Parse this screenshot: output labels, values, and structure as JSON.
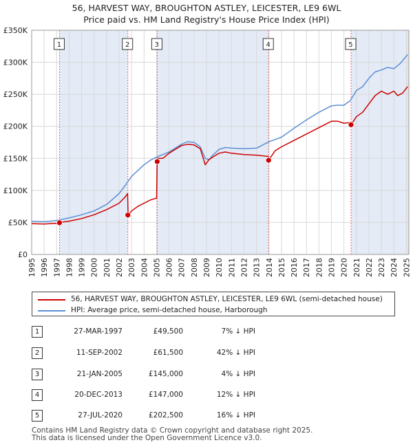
{
  "title_line1": "56, HARVEST WAY, BROUGHTON ASTLEY, LEICESTER, LE9 6WL",
  "title_line2": "Price paid vs. HM Land Registry's House Price Index (HPI)",
  "chart_data": {
    "type": "line",
    "xlim": [
      1995.0,
      2025.2
    ],
    "ylim": [
      0,
      350000
    ],
    "y_ticks": [
      0,
      50000,
      100000,
      150000,
      200000,
      250000,
      300000,
      350000
    ],
    "y_tick_labels": [
      "£0",
      "£50K",
      "£100K",
      "£150K",
      "£200K",
      "£250K",
      "£300K",
      "£350K"
    ],
    "x_ticks": [
      1995,
      1996,
      1997,
      1998,
      1999,
      2000,
      2001,
      2002,
      2003,
      2004,
      2005,
      2006,
      2007,
      2008,
      2009,
      2010,
      2011,
      2012,
      2013,
      2014,
      2015,
      2016,
      2017,
      2018,
      2019,
      2020,
      2021,
      2022,
      2023,
      2024,
      2025
    ],
    "grid": true,
    "series": [
      {
        "name": "56, HARVEST WAY, BROUGHTON ASTLEY, LEICESTER, LE9 6WL (semi-detached house)",
        "color": "#cc0000",
        "x": [
          1995.0,
          1996.0,
          1997.0,
          1997.23,
          1997.25,
          1998.0,
          1999.0,
          2000.0,
          2001.0,
          2002.0,
          2002.5,
          2002.68,
          2002.72,
          2003.0,
          2003.5,
          2004.0,
          2004.5,
          2005.0,
          2005.05,
          2005.1,
          2005.5,
          2006.0,
          2007.0,
          2007.5,
          2008.0,
          2008.5,
          2008.9,
          2009.2,
          2009.5,
          2010.0,
          2010.5,
          2011.0,
          2012.0,
          2013.0,
          2013.95,
          2013.97,
          2014.5,
          2015.0,
          2016.0,
          2017.0,
          2018.0,
          2019.0,
          2019.5,
          2020.0,
          2020.55,
          2020.57,
          2021.0,
          2021.5,
          2022.0,
          2022.5,
          2023.0,
          2023.5,
          2024.0,
          2024.3,
          2024.7,
          2025.1
        ],
        "y": [
          48000,
          47500,
          48500,
          49500,
          50000,
          52000,
          56000,
          62000,
          70000,
          80000,
          90000,
          95000,
          61500,
          68000,
          75000,
          80000,
          85000,
          88000,
          145000,
          150000,
          150000,
          158000,
          170000,
          172000,
          171000,
          165000,
          140000,
          148000,
          152000,
          158000,
          160000,
          158000,
          156000,
          155000,
          153000,
          147000,
          162000,
          168000,
          178000,
          188000,
          198000,
          208000,
          208000,
          205000,
          206000,
          202500,
          215000,
          222000,
          235000,
          248000,
          255000,
          250000,
          255000,
          248000,
          252000,
          262000
        ]
      },
      {
        "name": "HPI: Average price, semi-detached house, Harborough",
        "color": "#5b8fd4",
        "x": [
          1995.0,
          1996.0,
          1997.0,
          1998.0,
          1999.0,
          2000.0,
          2001.0,
          2002.0,
          2002.5,
          2003.0,
          2004.0,
          2004.5,
          2005.0,
          2006.0,
          2007.0,
          2007.5,
          2008.0,
          2008.5,
          2008.9,
          2009.2,
          2009.5,
          2010.0,
          2010.5,
          2011.0,
          2012.0,
          2013.0,
          2014.0,
          2015.0,
          2016.0,
          2017.0,
          2018.0,
          2019.0,
          2019.5,
          2020.0,
          2020.5,
          2021.0,
          2021.5,
          2022.0,
          2022.5,
          2023.0,
          2023.5,
          2024.0,
          2024.5,
          2025.1
        ],
        "y": [
          52000,
          51000,
          53000,
          57000,
          62000,
          68000,
          78000,
          95000,
          108000,
          122000,
          140000,
          147000,
          152000,
          160000,
          172000,
          176000,
          175000,
          168000,
          150000,
          148000,
          155000,
          164000,
          167000,
          166000,
          165000,
          166000,
          176000,
          183000,
          197000,
          210000,
          222000,
          232000,
          233000,
          233000,
          240000,
          256000,
          262000,
          275000,
          285000,
          288000,
          292000,
          290000,
          298000,
          312000
        ]
      }
    ],
    "sales": [
      {
        "num": "1",
        "x": 1997.23,
        "price": 49500
      },
      {
        "num": "2",
        "x": 2002.7,
        "price": 61500
      },
      {
        "num": "3",
        "x": 2005.05,
        "price": 145000
      },
      {
        "num": "4",
        "x": 2013.97,
        "price": 147000
      },
      {
        "num": "5",
        "x": 2020.57,
        "price": 202500
      }
    ]
  },
  "legend": {
    "property_label": "56, HARVEST WAY, BROUGHTON ASTLEY, LEICESTER, LE9 6WL (semi-detached house)",
    "hpi_label": "HPI: Average price, semi-detached house, Harborough"
  },
  "sales_table": [
    {
      "num": "1",
      "date": "27-MAR-1997",
      "price": "£49,500",
      "hpi": "7% ↓ HPI"
    },
    {
      "num": "2",
      "date": "11-SEP-2002",
      "price": "£61,500",
      "hpi": "42% ↓ HPI"
    },
    {
      "num": "3",
      "date": "21-JAN-2005",
      "price": "£145,000",
      "hpi": "4% ↓ HPI"
    },
    {
      "num": "4",
      "date": "20-DEC-2013",
      "price": "£147,000",
      "hpi": "12% ↓ HPI"
    },
    {
      "num": "5",
      "date": "27-JUL-2020",
      "price": "£202,500",
      "hpi": "16% ↓ HPI"
    }
  ],
  "footer_line1": "Contains HM Land Registry data © Crown copyright and database right 2025.",
  "footer_line2": "This data is licensed under the Open Government Licence v3.0."
}
